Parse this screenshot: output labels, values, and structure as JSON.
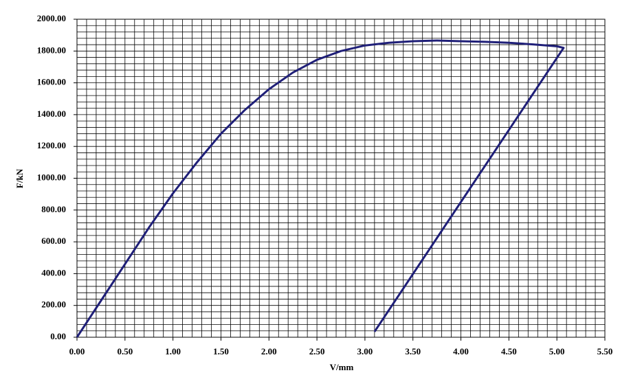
{
  "chart_data": {
    "type": "line",
    "x_label": "V/mm",
    "y_label": "F/kN",
    "series": [
      {
        "color": "#1f1f78",
        "x": [
          0,
          0.25,
          0.5,
          0.75,
          1.0,
          1.25,
          1.5,
          1.75,
          2.0,
          2.25,
          2.5,
          2.75,
          3.0,
          3.25,
          3.5,
          3.75,
          4.0,
          4.25,
          4.5,
          4.75,
          5.0,
          5.07,
          3.1
        ],
        "values": [
          0,
          230,
          460,
          690,
          905,
          1100,
          1280,
          1430,
          1560,
          1665,
          1745,
          1800,
          1835,
          1852,
          1862,
          1866,
          1862,
          1858,
          1852,
          1842,
          1830,
          1820,
          35
        ]
      }
    ],
    "xlim": [
      0,
      5.5
    ],
    "xticks": [
      {
        "value": 0,
        "label": "0.00"
      },
      {
        "value": 0.5,
        "label": "0.50"
      },
      {
        "value": 1,
        "label": "1.00"
      },
      {
        "value": 1.5,
        "label": "1.50"
      },
      {
        "value": 2,
        "label": "2.00"
      },
      {
        "value": 2.5,
        "label": "2.50"
      },
      {
        "value": 3,
        "label": "3.00"
      },
      {
        "value": 3.5,
        "label": "3.50"
      },
      {
        "value": 4,
        "label": "4.00"
      },
      {
        "value": 4.5,
        "label": "4.50"
      },
      {
        "value": 5,
        "label": "5.00"
      },
      {
        "value": 5.5,
        "label": "5.50"
      }
    ],
    "ylim": [
      0,
      2000
    ],
    "yticks": [
      {
        "value": 0,
        "label": "0.00"
      },
      {
        "value": 200,
        "label": "200.00"
      },
      {
        "value": 400,
        "label": "400.00"
      },
      {
        "value": 600,
        "label": "600.00"
      },
      {
        "value": 800,
        "label": "800.00"
      },
      {
        "value": 1000,
        "label": "1000.00"
      },
      {
        "value": 1200,
        "label": "1200.00"
      },
      {
        "value": 1400,
        "label": "1400.00"
      },
      {
        "value": 1600,
        "label": "1600.00"
      },
      {
        "value": 1800,
        "label": "1800.00"
      },
      {
        "value": 2000,
        "label": "2000.00"
      }
    ],
    "grid": true,
    "x_minor_step": 0.1,
    "y_minor_step": 40
  }
}
